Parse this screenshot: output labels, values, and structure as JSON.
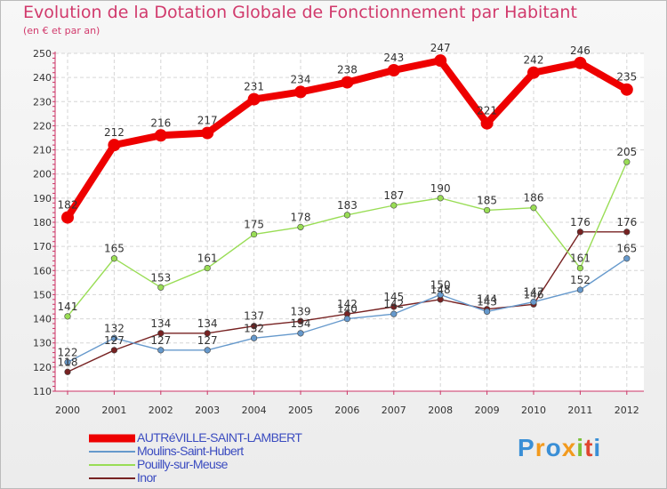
{
  "chart_data": {
    "type": "line",
    "title": "Evolution de la Dotation Globale de Fonctionnement par Habitant",
    "subtitle": "(en € et par an)",
    "xlabel": "",
    "ylabel": "",
    "ylim": [
      110,
      250
    ],
    "grid": true,
    "categories": [
      "2000",
      "2001",
      "2002",
      "2003",
      "2004",
      "2005",
      "2006",
      "2007",
      "2008",
      "2009",
      "2010",
      "2011",
      "2012"
    ],
    "y_ticks": [
      110,
      120,
      130,
      140,
      150,
      160,
      170,
      180,
      190,
      200,
      210,
      220,
      230,
      240,
      250
    ],
    "series": [
      {
        "name": "AUTRéVILLE-SAINT-LAMBERT",
        "color": "#ee0000",
        "values": [
          182,
          212,
          216,
          217,
          231,
          234,
          238,
          243,
          247,
          221,
          242,
          246,
          235
        ],
        "labels": [
          "182",
          "212",
          "216",
          "217",
          "231",
          "234",
          "238",
          "243",
          "247",
          "221",
          "242",
          "246",
          "235"
        ]
      },
      {
        "name": "Moulins-Saint-Hubert",
        "color": "#6699cc",
        "values": [
          122,
          132,
          127,
          127,
          132,
          134,
          140,
          142,
          150,
          143,
          147,
          152,
          165
        ],
        "labels": [
          "122",
          "132",
          "127",
          "127",
          "132",
          "134",
          "140",
          "142",
          "150",
          "143",
          "147",
          "152",
          "165"
        ]
      },
      {
        "name": "Pouilly-sur-Meuse",
        "color": "#99dd55",
        "values": [
          141,
          165,
          153,
          161,
          175,
          178,
          183,
          187,
          190,
          185,
          186,
          161,
          205
        ],
        "labels": [
          "141",
          "165",
          "153",
          "161",
          "175",
          "178",
          "183",
          "187",
          "190",
          "185",
          "186",
          "161",
          "205"
        ]
      },
      {
        "name": "Inor",
        "color": "#772222",
        "values": [
          118,
          127,
          134,
          134,
          137,
          139,
          142,
          145,
          148,
          144,
          146,
          176,
          176
        ],
        "labels": [
          "118",
          "127",
          "134",
          "134",
          "137",
          "139",
          "142",
          "145",
          "148",
          "144",
          "146",
          "176",
          "176"
        ]
      }
    ]
  },
  "logo_text": "Proxiti"
}
